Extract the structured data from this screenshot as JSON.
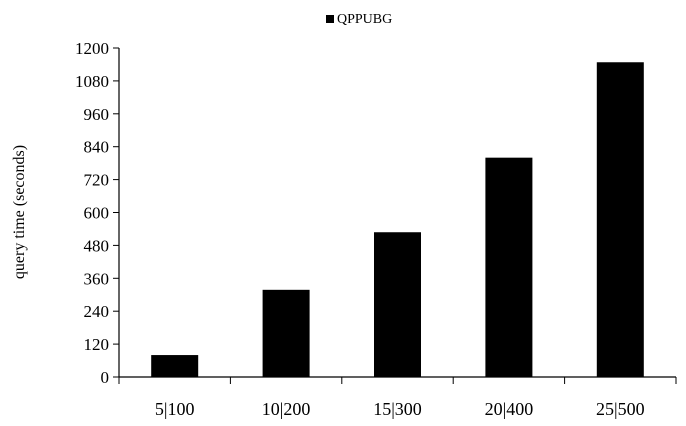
{
  "chart_data": {
    "type": "bar",
    "title": "",
    "xlabel": "",
    "ylabel": "query time (seconds)",
    "categories": [
      "5|100",
      "10|200",
      "15|300",
      "20|400",
      "25|500"
    ],
    "series": [
      {
        "name": "QPPUBG",
        "values": [
          80,
          318,
          528,
          800,
          1148
        ],
        "color": "#000000"
      }
    ],
    "ylim": [
      0,
      1200
    ],
    "yticks": [
      0,
      120,
      240,
      360,
      480,
      600,
      720,
      840,
      960,
      1080,
      1200
    ],
    "grid": false,
    "legend_position": "top-center"
  }
}
